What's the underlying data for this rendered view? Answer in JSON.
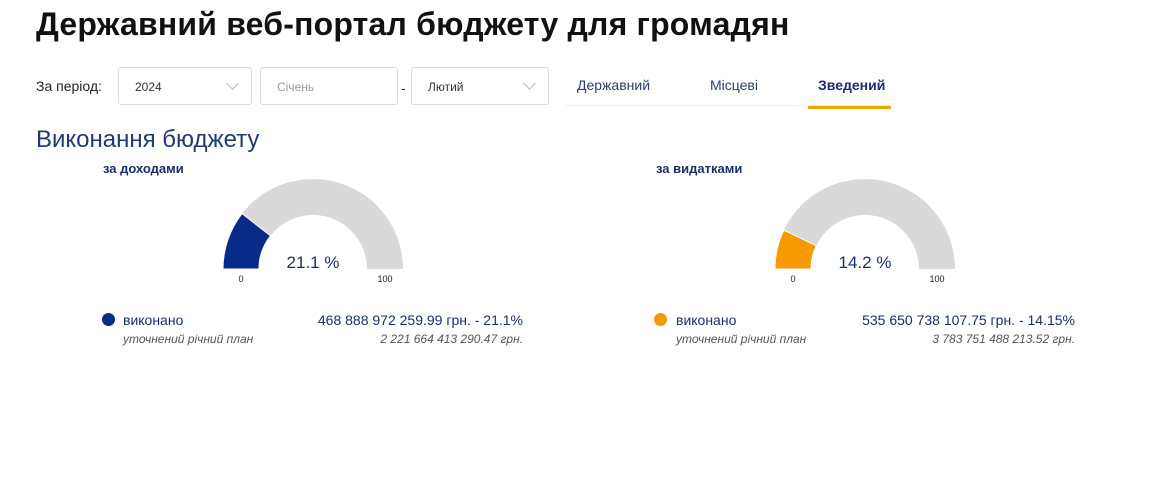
{
  "header": {
    "title": "Державний веб-портал бюджету для громадян"
  },
  "filters": {
    "period_label": "За період:",
    "year": "2024",
    "month_from": "Січень",
    "dash": "-",
    "month_to": "Лютий"
  },
  "tabs": [
    {
      "label": "Державний",
      "active": false
    },
    {
      "label": "Місцеві",
      "active": false
    },
    {
      "label": "Зведений",
      "active": true
    }
  ],
  "section": {
    "title": "Виконання бюджету"
  },
  "revenue": {
    "subtitle": "за доходами",
    "percent": 21.1,
    "percent_label": "21.1 %",
    "min_label": "0",
    "max_label": "100",
    "color": "#0a2a8a",
    "done_label": "виконано",
    "done_value": "468 888 972 259.99 грн. - 21.1%",
    "plan_label": "уточнений річний план",
    "plan_value": "2 221 664 413 290.47 грн."
  },
  "expenses": {
    "subtitle": "за видатками",
    "percent": 14.2,
    "percent_label": "14.2 %",
    "min_label": "0",
    "max_label": "100",
    "color": "#f59a00",
    "done_label": "виконано",
    "done_value": "535 650 738 107.75 грн. - 14.15%",
    "plan_label": "уточнений річний план",
    "plan_value": "3 783 751 488 213.52 грн."
  },
  "colors": {
    "gauge_track": "#d9d9d9",
    "accent_tab": "#f0a500",
    "heading": "#1f3a76"
  }
}
